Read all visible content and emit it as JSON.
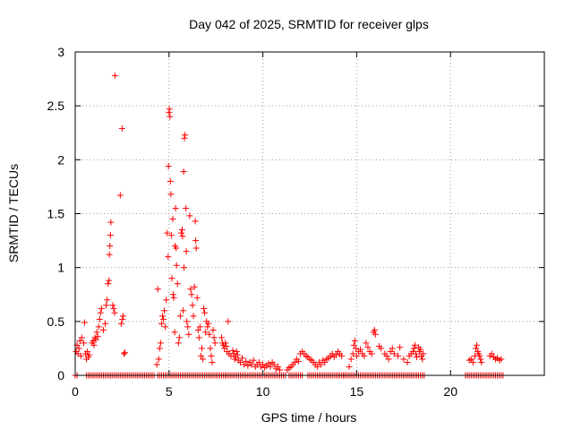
{
  "chart_data": {
    "type": "scatter",
    "title": "Day 042 of 2025, SRMTID for receiver glps",
    "xlabel": "GPS time / hours",
    "ylabel": "SRMTID / TECUs",
    "xlim": [
      0,
      25
    ],
    "ylim": [
      0,
      3
    ],
    "xticks": [
      0,
      5,
      10,
      15,
      20
    ],
    "yticks": [
      0,
      0.5,
      1,
      1.5,
      2,
      2.5,
      3
    ],
    "ytick_labels": [
      "0",
      "0.5",
      "1",
      "1.5",
      "2",
      "2.5",
      "3"
    ],
    "grid": true,
    "marker": "+",
    "color": "#ff0000",
    "series": [
      {
        "name": "SRMTID",
        "points": [
          [
            0.05,
            0.22
          ],
          [
            0.1,
            0.28
          ],
          [
            0.15,
            0.2
          ],
          [
            0.2,
            0.25
          ],
          [
            0.25,
            0.32
          ],
          [
            0.3,
            0.18
          ],
          [
            0.35,
            0.35
          ],
          [
            0.45,
            0.3
          ],
          [
            0.5,
            0.49
          ],
          [
            0.55,
            0.2
          ],
          [
            0.6,
            0.15
          ],
          [
            0.65,
            0.22
          ],
          [
            0.7,
            0.17
          ],
          [
            0.75,
            0.19
          ],
          [
            0.9,
            0.3
          ],
          [
            0.95,
            0.32
          ],
          [
            1.0,
            0.28
          ],
          [
            1.05,
            0.35
          ],
          [
            1.1,
            0.33
          ],
          [
            1.15,
            0.4
          ],
          [
            1.2,
            0.36
          ],
          [
            1.25,
            0.45
          ],
          [
            1.3,
            0.52
          ],
          [
            1.35,
            0.58
          ],
          [
            1.4,
            0.62
          ],
          [
            1.5,
            0.42
          ],
          [
            1.6,
            0.48
          ],
          [
            1.65,
            0.65
          ],
          [
            1.7,
            0.7
          ],
          [
            1.75,
            0.85
          ],
          [
            1.8,
            0.88
          ],
          [
            1.82,
            1.12
          ],
          [
            1.85,
            1.2
          ],
          [
            1.88,
            1.3
          ],
          [
            1.9,
            1.42
          ],
          [
            2.0,
            0.65
          ],
          [
            2.05,
            0.62
          ],
          [
            2.1,
            0.58
          ],
          [
            2.12,
            2.78
          ],
          [
            2.4,
            1.67
          ],
          [
            2.45,
            0.48
          ],
          [
            2.5,
            2.29
          ],
          [
            2.52,
            0.52
          ],
          [
            2.55,
            0.55
          ],
          [
            2.6,
            0.2
          ],
          [
            2.65,
            0.21
          ],
          [
            4.35,
            0.1
          ],
          [
            4.4,
            0.8
          ],
          [
            4.45,
            0.15
          ],
          [
            4.5,
            0.25
          ],
          [
            4.55,
            0.3
          ],
          [
            4.6,
            0.48
          ],
          [
            4.65,
            0.55
          ],
          [
            4.7,
            0.52
          ],
          [
            4.75,
            0.6
          ],
          [
            4.8,
            0.45
          ],
          [
            4.85,
            0.7
          ],
          [
            4.9,
            1.32
          ],
          [
            4.95,
            1.1
          ],
          [
            4.97,
            1.94
          ],
          [
            5.0,
            2.44
          ],
          [
            5.02,
            2.47
          ],
          [
            5.05,
            2.4
          ],
          [
            5.07,
            1.8
          ],
          [
            5.1,
            1.68
          ],
          [
            5.12,
            1.3
          ],
          [
            5.15,
            0.9
          ],
          [
            5.2,
            1.45
          ],
          [
            5.22,
            0.75
          ],
          [
            5.25,
            0.72
          ],
          [
            5.3,
            0.4
          ],
          [
            5.32,
            1.2
          ],
          [
            5.35,
            1.55
          ],
          [
            5.38,
            1.18
          ],
          [
            5.4,
            1.02
          ],
          [
            5.45,
            0.85
          ],
          [
            5.5,
            0.3
          ],
          [
            5.55,
            0.35
          ],
          [
            5.6,
            0.55
          ],
          [
            5.65,
            1.32
          ],
          [
            5.7,
            1.35
          ],
          [
            5.72,
            1.29
          ],
          [
            5.75,
            0.6
          ],
          [
            5.78,
            1.89
          ],
          [
            5.8,
            1.0
          ],
          [
            5.82,
            2.2
          ],
          [
            5.85,
            2.23
          ],
          [
            5.9,
            1.55
          ],
          [
            5.92,
            1.15
          ],
          [
            5.95,
            0.5
          ],
          [
            6.0,
            0.45
          ],
          [
            6.05,
            0.38
          ],
          [
            6.1,
            1.48
          ],
          [
            6.15,
            0.8
          ],
          [
            6.2,
            0.75
          ],
          [
            6.25,
            0.65
          ],
          [
            6.3,
            0.55
          ],
          [
            6.35,
            0.82
          ],
          [
            6.4,
            1.43
          ],
          [
            6.42,
            1.25
          ],
          [
            6.45,
            1.18
          ],
          [
            6.5,
            0.72
          ],
          [
            6.55,
            0.42
          ],
          [
            6.6,
            0.35
          ],
          [
            6.65,
            0.45
          ],
          [
            6.7,
            0.18
          ],
          [
            6.75,
            0.25
          ],
          [
            6.8,
            0.15
          ],
          [
            6.85,
            0.62
          ],
          [
            6.9,
            0.58
          ],
          [
            6.95,
            0.4
          ],
          [
            7.0,
            0.5
          ],
          [
            7.05,
            0.45
          ],
          [
            7.1,
            0.48
          ],
          [
            7.15,
            0.38
          ],
          [
            7.2,
            0.25
          ],
          [
            7.25,
            0.18
          ],
          [
            7.3,
            0.12
          ],
          [
            7.35,
            0.42
          ],
          [
            7.4,
            0.35
          ],
          [
            7.45,
            0.3
          ],
          [
            7.8,
            0.35
          ],
          [
            7.85,
            0.3
          ],
          [
            7.9,
            0.28
          ],
          [
            7.95,
            0.25
          ],
          [
            8.0,
            0.3
          ],
          [
            8.05,
            0.27
          ],
          [
            8.1,
            0.22
          ],
          [
            8.15,
            0.5
          ],
          [
            8.2,
            0.2
          ],
          [
            8.3,
            0.18
          ],
          [
            8.4,
            0.23
          ],
          [
            8.45,
            0.2
          ],
          [
            8.5,
            0.15
          ],
          [
            8.55,
            0.17
          ],
          [
            8.6,
            0.22
          ],
          [
            8.65,
            0.19
          ],
          [
            8.7,
            0.14
          ],
          [
            8.8,
            0.12
          ],
          [
            8.9,
            0.16
          ],
          [
            9.0,
            0.1
          ],
          [
            9.1,
            0.13
          ],
          [
            9.2,
            0.09
          ],
          [
            9.3,
            0.12
          ],
          [
            9.4,
            0.1
          ],
          [
            9.5,
            0.14
          ],
          [
            9.6,
            0.08
          ],
          [
            9.7,
            0.1
          ],
          [
            9.8,
            0.12
          ],
          [
            9.9,
            0.08
          ],
          [
            10.0,
            0.1
          ],
          [
            10.1,
            0.07
          ],
          [
            10.2,
            0.09
          ],
          [
            10.3,
            0.11
          ],
          [
            10.4,
            0.08
          ],
          [
            10.5,
            0.12
          ],
          [
            10.6,
            0.1
          ],
          [
            10.7,
            0.06
          ],
          [
            10.8,
            0.08
          ],
          [
            10.9,
            0.05
          ],
          [
            11.3,
            0.05
          ],
          [
            11.4,
            0.07
          ],
          [
            11.5,
            0.08
          ],
          [
            11.6,
            0.1
          ],
          [
            11.7,
            0.12
          ],
          [
            11.8,
            0.15
          ],
          [
            11.9,
            0.13
          ],
          [
            12.0,
            0.2
          ],
          [
            12.1,
            0.22
          ],
          [
            12.2,
            0.2
          ],
          [
            12.3,
            0.18
          ],
          [
            12.4,
            0.17
          ],
          [
            12.5,
            0.15
          ],
          [
            12.6,
            0.14
          ],
          [
            12.7,
            0.12
          ],
          [
            12.8,
            0.1
          ],
          [
            12.9,
            0.08
          ],
          [
            13.0,
            0.12
          ],
          [
            13.1,
            0.1
          ],
          [
            13.2,
            0.14
          ],
          [
            13.3,
            0.12
          ],
          [
            13.4,
            0.15
          ],
          [
            13.5,
            0.16
          ],
          [
            13.6,
            0.18
          ],
          [
            13.7,
            0.2
          ],
          [
            13.8,
            0.17
          ],
          [
            13.9,
            0.19
          ],
          [
            14.0,
            0.22
          ],
          [
            14.1,
            0.2
          ],
          [
            14.2,
            0.18
          ],
          [
            14.6,
            0.08
          ],
          [
            14.7,
            0.15
          ],
          [
            14.8,
            0.2
          ],
          [
            14.85,
            0.28
          ],
          [
            14.9,
            0.32
          ],
          [
            14.95,
            0.25
          ],
          [
            15.0,
            0.18
          ],
          [
            15.1,
            0.22
          ],
          [
            15.2,
            0.24
          ],
          [
            15.3,
            0.2
          ],
          [
            15.4,
            0.18
          ],
          [
            15.5,
            0.3
          ],
          [
            15.6,
            0.26
          ],
          [
            15.7,
            0.22
          ],
          [
            15.8,
            0.2
          ],
          [
            15.9,
            0.4
          ],
          [
            15.95,
            0.42
          ],
          [
            16.0,
            0.38
          ],
          [
            16.2,
            0.27
          ],
          [
            16.3,
            0.25
          ],
          [
            16.5,
            0.2
          ],
          [
            16.6,
            0.18
          ],
          [
            16.7,
            0.15
          ],
          [
            16.8,
            0.22
          ],
          [
            16.9,
            0.25
          ],
          [
            17.0,
            0.2
          ],
          [
            17.2,
            0.18
          ],
          [
            17.3,
            0.26
          ],
          [
            17.5,
            0.15
          ],
          [
            17.7,
            0.12
          ],
          [
            17.8,
            0.18
          ],
          [
            17.9,
            0.2
          ],
          [
            18.0,
            0.22
          ],
          [
            18.05,
            0.25
          ],
          [
            18.1,
            0.28
          ],
          [
            18.15,
            0.2
          ],
          [
            18.2,
            0.17
          ],
          [
            18.3,
            0.26
          ],
          [
            18.35,
            0.22
          ],
          [
            18.4,
            0.24
          ],
          [
            18.45,
            0.18
          ],
          [
            18.5,
            0.15
          ],
          [
            18.55,
            0.2
          ],
          [
            21.0,
            0.14
          ],
          [
            21.1,
            0.15
          ],
          [
            21.2,
            0.12
          ],
          [
            21.3,
            0.18
          ],
          [
            21.35,
            0.25
          ],
          [
            21.4,
            0.28
          ],
          [
            21.45,
            0.22
          ],
          [
            21.5,
            0.2
          ],
          [
            21.55,
            0.18
          ],
          [
            21.6,
            0.15
          ],
          [
            21.65,
            0.12
          ],
          [
            22.1,
            0.18
          ],
          [
            22.2,
            0.2
          ],
          [
            22.3,
            0.17
          ],
          [
            22.4,
            0.15
          ],
          [
            22.5,
            0.16
          ],
          [
            22.6,
            0.14
          ],
          [
            22.7,
            0.15
          ]
        ],
        "zero_ranges": [
          [
            0.0,
            0.1
          ],
          [
            0.6,
            4.2
          ],
          [
            4.4,
            8.0
          ],
          [
            8.0,
            11.2
          ],
          [
            11.4,
            12.1
          ],
          [
            12.4,
            14.3
          ],
          [
            14.3,
            18.6
          ],
          [
            20.8,
            22.8
          ]
        ],
        "zero_step": 0.1
      }
    ]
  }
}
